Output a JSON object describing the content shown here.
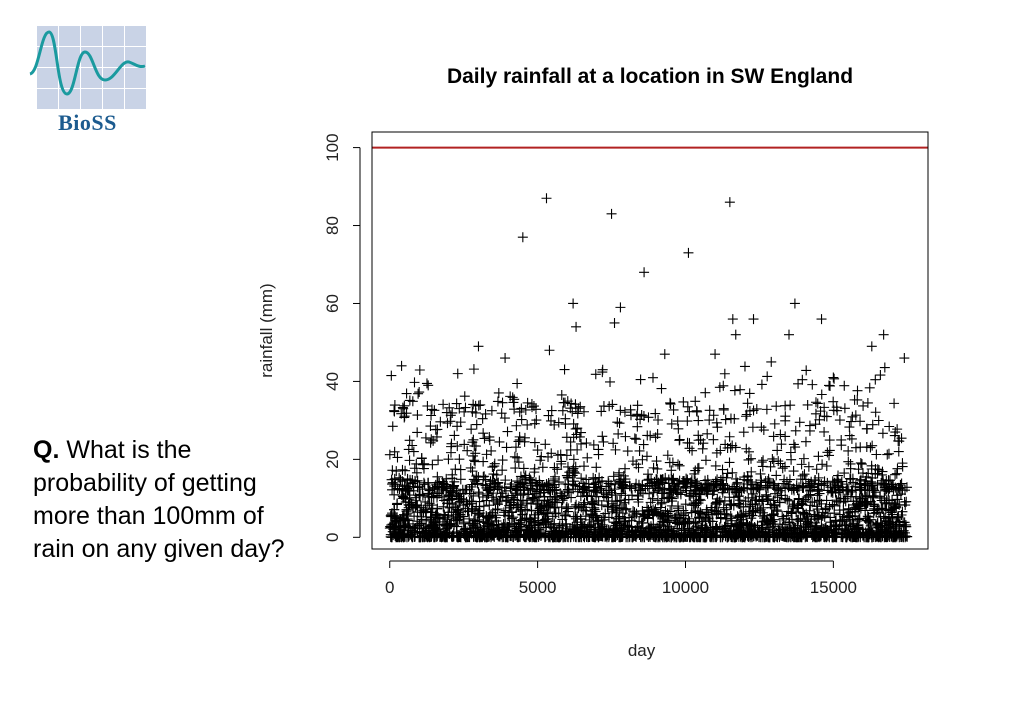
{
  "logo": {
    "text": "BioSS",
    "icon": "bioss-wave-grid-logo"
  },
  "question": {
    "prefix": "Q.",
    "text": "What is the probability of getting more than 100mm of rain on any given day?"
  },
  "colors": {
    "threshold_line": "#b22222",
    "points": "#000000",
    "logo_grid": "#c9d3e6",
    "logo_wave": "#1a9a9f",
    "logo_text": "#1c5b8f"
  },
  "chart_data": {
    "type": "scatter",
    "title": "Daily rainfall at a location in SW England",
    "xlabel": "day",
    "ylabel": "rainfall (mm)",
    "xlim": [
      -600,
      18200
    ],
    "ylim": [
      -3,
      104
    ],
    "xticks": [
      0,
      5000,
      10000,
      15000
    ],
    "yticks": [
      0,
      20,
      40,
      60,
      80,
      100
    ],
    "marker": "+",
    "grid": false,
    "reference_line": {
      "orientation": "horizontal",
      "y": 100
    },
    "n_days": 17500,
    "highlighted_points": [
      {
        "x": 4500,
        "y": 77
      },
      {
        "x": 5300,
        "y": 87
      },
      {
        "x": 7500,
        "y": 83
      },
      {
        "x": 11500,
        "y": 86
      },
      {
        "x": 10100,
        "y": 73
      },
      {
        "x": 8600,
        "y": 68
      },
      {
        "x": 5400,
        "y": 48
      },
      {
        "x": 6200,
        "y": 60
      },
      {
        "x": 6300,
        "y": 54
      },
      {
        "x": 7600,
        "y": 55
      },
      {
        "x": 7800,
        "y": 59
      },
      {
        "x": 12300,
        "y": 56
      },
      {
        "x": 13700,
        "y": 60
      },
      {
        "x": 14600,
        "y": 56
      },
      {
        "x": 11600,
        "y": 56
      },
      {
        "x": 11700,
        "y": 52
      },
      {
        "x": 9300,
        "y": 47
      },
      {
        "x": 3000,
        "y": 49
      },
      {
        "x": 16300,
        "y": 49
      },
      {
        "x": 16700,
        "y": 52
      },
      {
        "x": 17400,
        "y": 46
      },
      {
        "x": 400,
        "y": 44
      },
      {
        "x": 13500,
        "y": 52
      },
      {
        "x": 7200,
        "y": 43
      },
      {
        "x": 15000,
        "y": 41
      },
      {
        "x": 3900,
        "y": 46
      },
      {
        "x": 2300,
        "y": 42
      },
      {
        "x": 1300,
        "y": 39
      },
      {
        "x": 11000,
        "y": 47
      },
      {
        "x": 12900,
        "y": 45
      }
    ],
    "bulk": {
      "range_mm": [
        0,
        35
      ],
      "dense_below_mm": 15
    }
  }
}
